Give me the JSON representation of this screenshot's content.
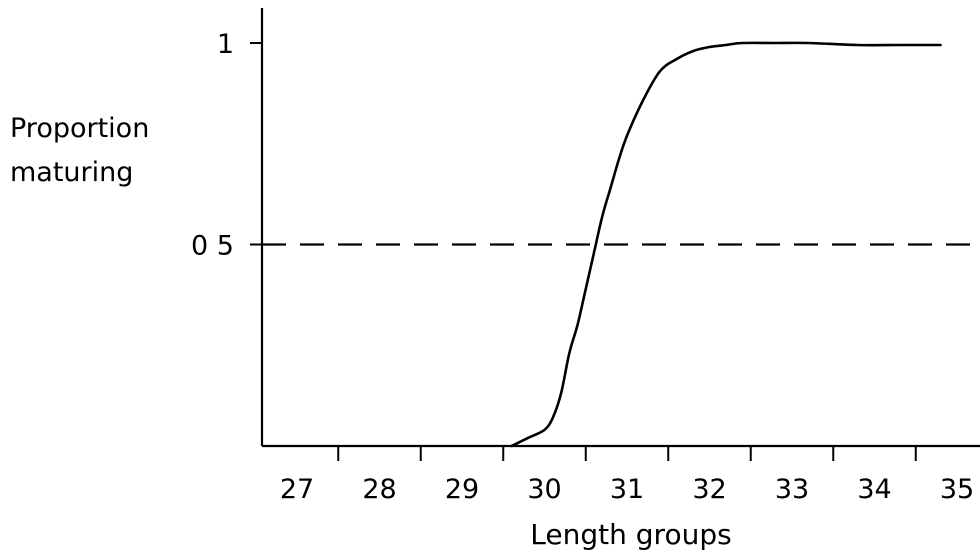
{
  "chart_data": {
    "type": "line",
    "title": "",
    "xlabel": "Length groups",
    "ylabel_lines": [
      "Proportion",
      "maturing"
    ],
    "categories": [
      "27",
      "28",
      "29",
      "30",
      "31",
      "32",
      "33",
      "34",
      "35"
    ],
    "y_ticks": [
      {
        "value": 0.5,
        "label": "0 5"
      },
      {
        "value": 1,
        "label": "1"
      }
    ],
    "ylim": [
      0,
      1
    ],
    "grid": false,
    "legend": "none",
    "reference_line": {
      "y": 0.5,
      "style": "dashed"
    },
    "series": [
      {
        "x": [
          29.6,
          29.8,
          30.0,
          30.1,
          30.2,
          30.3,
          30.4,
          30.5,
          30.6,
          30.7,
          30.8,
          30.9,
          31.0,
          31.2,
          31.4,
          31.6,
          31.8,
          32.0,
          32.2,
          32.4,
          32.8,
          33.2,
          33.8,
          34.3,
          34.8
        ],
        "y": [
          0.0,
          0.02,
          0.04,
          0.07,
          0.13,
          0.23,
          0.3,
          0.39,
          0.48,
          0.57,
          0.64,
          0.71,
          0.77,
          0.86,
          0.93,
          0.96,
          0.98,
          0.99,
          0.995,
          1.0,
          1.0,
          1.0,
          0.995,
          0.995,
          0.995
        ]
      }
    ]
  }
}
